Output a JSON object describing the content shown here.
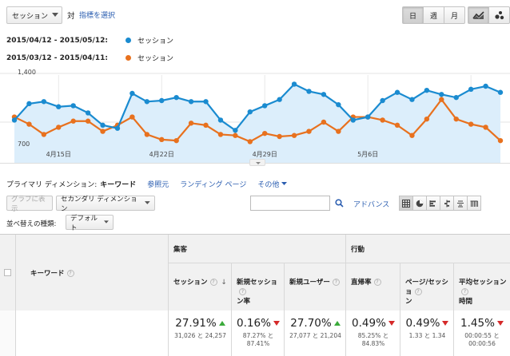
{
  "controls": {
    "metric_select": "セッション",
    "vs_label": "対",
    "choose_metric": "指標を選択",
    "period_buttons": [
      "日",
      "週",
      "月"
    ],
    "active_period": "日",
    "chart_type_icons": [
      "line-chart-icon",
      "motion-chart-icon"
    ]
  },
  "legend": [
    {
      "date_range": "2015/04/12 - 2015/05/12:",
      "series": "セッション",
      "color": "#1a8bd0"
    },
    {
      "date_range": "2015/03/12 - 2015/04/11:",
      "series": "セッション",
      "color": "#e8711e"
    }
  ],
  "chart_data": {
    "type": "line",
    "x_tick_labels": [
      "4月15日",
      "4月22日",
      "4月29日",
      "5月6日"
    ],
    "y_tick_labels": [
      "1,400",
      "700"
    ],
    "ylim": [
      0,
      1400
    ],
    "grid": true,
    "series": [
      {
        "name": "2015/04/12 - 2015/05/12: セッション",
        "color": "#1a8bd0",
        "values": [
          930,
          1090,
          1110,
          1060,
          1070,
          1000,
          880,
          850,
          1190,
          1110,
          1120,
          1150,
          1110,
          1110,
          930,
          830,
          1010,
          1070,
          1130,
          1280,
          1210,
          1180,
          1080,
          930,
          960,
          1120,
          1200,
          1130,
          1220,
          1180,
          1150,
          1230,
          1260,
          1200
        ]
      },
      {
        "name": "2015/03/12 - 2015/04/11: セッション",
        "color": "#e8711e",
        "values": [
          960,
          890,
          790,
          860,
          920,
          920,
          820,
          880,
          960,
          790,
          740,
          730,
          900,
          880,
          790,
          780,
          720,
          800,
          770,
          780,
          820,
          910,
          820,
          960,
          960,
          930,
          880,
          780,
          940,
          1130,
          940,
          890,
          860,
          730
        ]
      }
    ]
  },
  "dimension_bar": {
    "label": "プライマリ ディメンション:",
    "active": "キーワード",
    "links": [
      "参照元",
      "ランディング ページ"
    ],
    "other": "その他"
  },
  "toolbar": {
    "graph_button": "グラフに表示",
    "secondary_dimension": "セカンダリ ディメンション",
    "search_value": "",
    "advanced": "アドバンス",
    "view_icons": [
      "table-view-icon",
      "pie-view-icon",
      "performance-view-icon",
      "comparison-view-icon",
      "term-cloud-icon",
      "pivot-view-icon"
    ]
  },
  "sort": {
    "label": "並べ替えの種類:",
    "value": "デフォルト"
  },
  "table": {
    "col_keyword": "キーワード",
    "group_acquisition": "集客",
    "group_behavior": "行動",
    "columns": [
      {
        "label1": "セッション",
        "label2": "",
        "value": "27.91%",
        "trend": "up",
        "sub1": "31,026 と 24,257",
        "sub2": ""
      },
      {
        "label1": "新規セッショ",
        "label2": "ン率",
        "value": "0.16%",
        "trend": "down",
        "sub1": "87.27% と",
        "sub2": "87.41%"
      },
      {
        "label1": "新規ユーザー",
        "label2": "",
        "value": "27.70%",
        "trend": "up",
        "sub1": "27,077 と 21,204",
        "sub2": ""
      },
      {
        "label1": "直帰率",
        "label2": "",
        "value": "0.49%",
        "trend": "down",
        "sub1": "85.25% と",
        "sub2": "84.83%"
      },
      {
        "label1": "ページ/セッショ",
        "label2": "ン",
        "value": "0.49%",
        "trend": "down",
        "sub1": "1.33 と 1.34",
        "sub2": ""
      },
      {
        "label1": "平均セッション",
        "label2": "時間",
        "value": "1.45%",
        "trend": "down",
        "sub1": "00:00:55 と",
        "sub2": "00:00:56"
      }
    ]
  }
}
